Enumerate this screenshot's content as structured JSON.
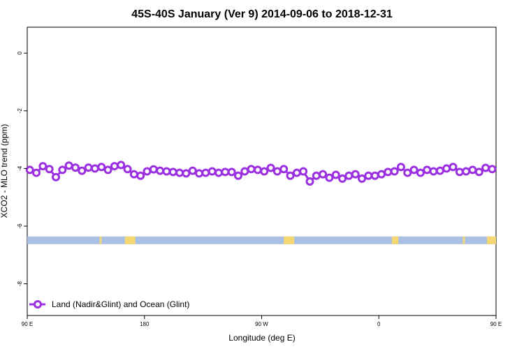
{
  "chart_data": {
    "type": "line",
    "title": "45S-40S January (Ver 9)   2014-09-06 to 2018-12-31",
    "xlabel": "Longitude (deg E)",
    "ylabel": "XCO2 - MLO trend (ppm)",
    "xlim": [
      90,
      450
    ],
    "ylim": [
      -9.1,
      0.9
    ],
    "x_ticks": [
      {
        "value": 90,
        "label": "90 E"
      },
      {
        "value": 180,
        "label": "180"
      },
      {
        "value": 270,
        "label": "90 W"
      },
      {
        "value": 360,
        "label": "0"
      },
      {
        "value": 450,
        "label": "90 E"
      },
      {
        "value": 540,
        "label": "180"
      }
    ],
    "y_ticks": [
      {
        "value": 0,
        "label": "0"
      },
      {
        "value": -2,
        "label": "-2"
      },
      {
        "value": -4,
        "label": "-4"
      },
      {
        "value": -6,
        "label": "-6"
      },
      {
        "value": -8,
        "label": "-8"
      }
    ],
    "series": [
      {
        "name": "Land (Nadir&Glint) and Ocean (Glint)",
        "color": "#9b30e0",
        "x": [
          92,
          97,
          102,
          107,
          112,
          117,
          122,
          127,
          132,
          137,
          142,
          147,
          152,
          157,
          162,
          167,
          172,
          177,
          182,
          187,
          192,
          197,
          202,
          207,
          212,
          217,
          222,
          227,
          232,
          237,
          242,
          247,
          252,
          257,
          262,
          267,
          272,
          277,
          282,
          287,
          292,
          297,
          302,
          307,
          312,
          317,
          322,
          327,
          332,
          337,
          342,
          347,
          352,
          357,
          362,
          367,
          372,
          377,
          382,
          387,
          392,
          397,
          402,
          407,
          412,
          417,
          422,
          427,
          432,
          437,
          442,
          447
        ],
        "y": [
          -4.05,
          -4.15,
          -3.92,
          -4.02,
          -4.3,
          -4.05,
          -3.9,
          -3.97,
          -4.08,
          -3.97,
          -4.0,
          -3.95,
          -4.05,
          -3.92,
          -3.88,
          -4.02,
          -4.2,
          -4.25,
          -4.1,
          -4.03,
          -4.08,
          -4.1,
          -4.12,
          -4.15,
          -4.17,
          -4.08,
          -4.17,
          -4.15,
          -4.1,
          -4.15,
          -4.12,
          -4.12,
          -4.25,
          -4.1,
          -4.02,
          -4.05,
          -4.1,
          -3.98,
          -4.1,
          -4.02,
          -4.25,
          -4.15,
          -4.1,
          -4.45,
          -4.25,
          -4.2,
          -4.32,
          -4.22,
          -4.35,
          -4.25,
          -4.2,
          -4.35,
          -4.25,
          -4.25,
          -4.2,
          -4.12,
          -4.1,
          -3.95,
          -4.15,
          -4.05,
          -4.15,
          -4.05,
          -4.1,
          -4.08,
          -4.0,
          -3.95,
          -4.12,
          -4.1,
          -4.05,
          -4.12,
          -3.98,
          -4.02
        ]
      }
    ],
    "coverage_band": {
      "y_center": -6.48,
      "ocean_color": "#a9bfe3",
      "land_color": "#f5d774",
      "land_segments": [
        [
          145.5,
          147
        ],
        [
          165,
          173
        ],
        [
          287,
          295
        ],
        [
          370,
          375
        ],
        [
          424.5,
          426
        ],
        [
          443,
          450
        ]
      ]
    },
    "legend_position": "bottom-left",
    "grid": false
  }
}
